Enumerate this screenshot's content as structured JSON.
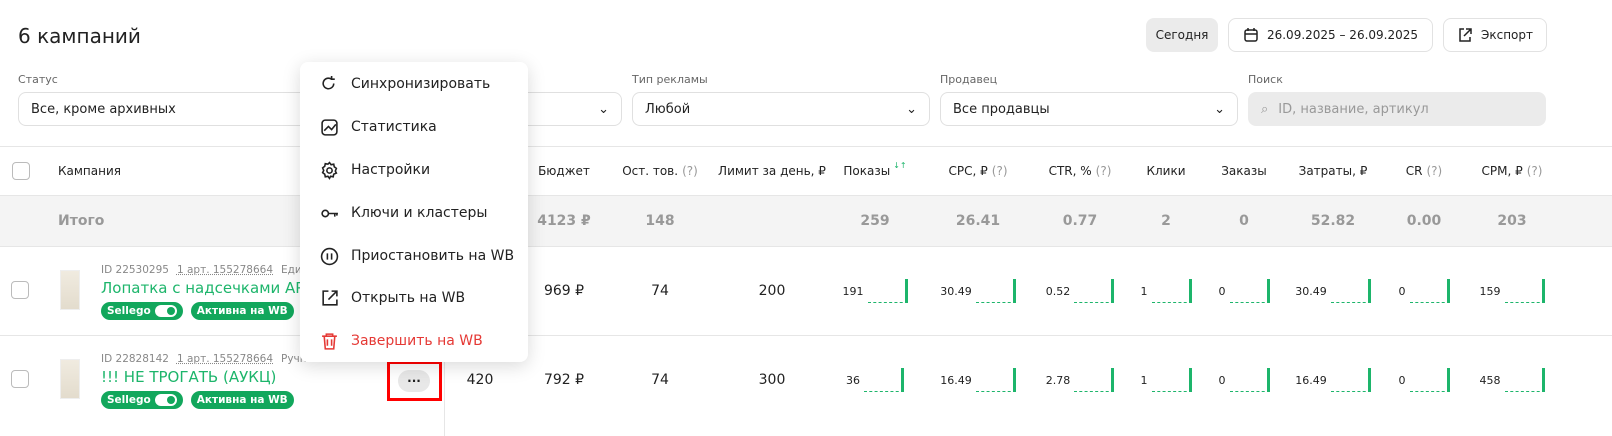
{
  "header": {
    "title": "6 кампаний",
    "today": "Сегодня",
    "date_range": "26.09.2025 – 26.09.2025",
    "export": "Экспорт"
  },
  "filters": {
    "status": {
      "label": "Статус",
      "value": "Все, кроме архивных"
    },
    "ad_type": {
      "label": "Тип рекламы",
      "value": "Любой"
    },
    "seller": {
      "label": "Продавец",
      "value": "Все продавцы"
    },
    "search": {
      "label": "Поиск",
      "placeholder": "ID, название, артикул"
    }
  },
  "table": {
    "columns": {
      "campaign": "Кампания",
      "budget": "Бюджет",
      "stock": "Ост. тов.",
      "limit": "Лимит за день, ₽",
      "views": "Показы",
      "cpc": "CPC, ₽",
      "ctr": "CTR, %",
      "clicks": "Клики",
      "orders": "Заказы",
      "spend": "Затраты, ₽",
      "cr": "CR",
      "cpm": "CPM, ₽",
      "hint": "(?)"
    },
    "total": {
      "label": "Итого",
      "budget": "4123 ₽",
      "stock": "148",
      "views": "259",
      "cpc": "26.41",
      "ctr": "0.77",
      "clicks": "2",
      "orders": "0",
      "spend": "52.82",
      "cr": "0.00",
      "cpm": "203"
    },
    "rows": [
      {
        "id": "ID 22530295",
        "art": "1 арт. 155278664",
        "type": "Един",
        "name": "Лопатка с надсечками АРК",
        "sellego": "Sellego",
        "status": "Активна на WB",
        "hidden": "",
        "budget": "969 ₽",
        "stock": "74",
        "limit": "200",
        "views": "191",
        "cpc": "30.49",
        "ctr": "0.52",
        "clicks": "1",
        "orders": "0",
        "spend": "30.49",
        "cr": "0",
        "cpm": "159"
      },
      {
        "id": "ID 22828142",
        "art": "1 арт. 155278664",
        "type": "Ручная ставка",
        "name": "!!! НЕ ТРОГАТЬ (АУКЦ)",
        "sellego": "Sellego",
        "status": "Активна на WB",
        "hidden": "420",
        "budget": "792 ₽",
        "stock": "74",
        "limit": "300",
        "views": "36",
        "cpc": "16.49",
        "ctr": "2.78",
        "clicks": "1",
        "orders": "0",
        "spend": "16.49",
        "cr": "0",
        "cpm": "458"
      }
    ]
  },
  "menu": {
    "items": [
      {
        "label": "Синхронизировать",
        "icon": "refresh-icon"
      },
      {
        "label": "Статистика",
        "icon": "chart-icon"
      },
      {
        "label": "Настройки",
        "icon": "gear-icon"
      },
      {
        "label": "Ключи и кластеры",
        "icon": "key-icon"
      },
      {
        "label": "Приостановить на WB",
        "icon": "pause-icon"
      },
      {
        "label": "Открыть на WB",
        "icon": "external-link-icon"
      },
      {
        "label": "Завершить на WB",
        "icon": "trash-icon"
      }
    ]
  },
  "more_button": "···",
  "colors": {
    "accent": "#1db56b",
    "danger": "#e53935",
    "highlight": "#ff0000"
  }
}
